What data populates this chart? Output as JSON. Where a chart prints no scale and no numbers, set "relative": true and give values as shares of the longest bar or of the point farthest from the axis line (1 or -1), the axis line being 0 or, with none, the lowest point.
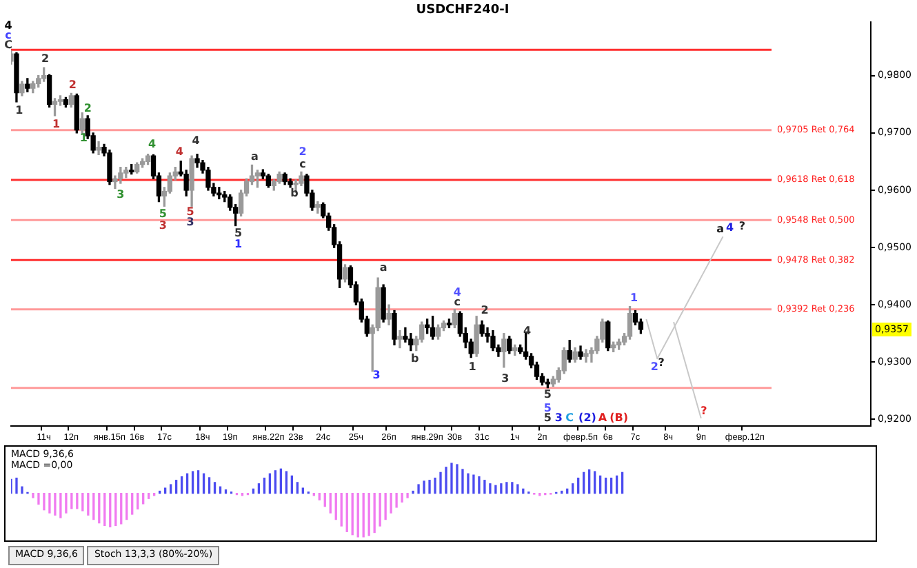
{
  "chart_data": [
    {
      "type": "candlestick",
      "title": "USDCHF240-I",
      "colors": [
        "#9a9a9a",
        "#000000",
        "#9a9a9a",
        "#000000",
        "#9a9a9a",
        "#9a9a9a",
        "#9a9a9a",
        "#000000",
        "#9a9a9a",
        "#9a9a9a",
        "#000000",
        "#9a9a9a",
        "#000000",
        "#9a9a9a",
        "#000000",
        "#000000",
        "#9a9a9a",
        "#000000",
        "#000000",
        "#9a9a9a",
        "#9a9a9a",
        "#9a9a9a",
        "#000000",
        "#9a9a9a",
        "#9a9a9a",
        "#9a9a9a",
        "#000000",
        "#000000",
        "#9a9a9a",
        "#9a9a9a",
        "#9a9a9a",
        "#000000",
        "#000000",
        "#9a9a9a",
        "#000000",
        "#000000",
        "#000000",
        "#000000",
        "#000000",
        "#000000",
        "#000000",
        "#000000",
        "#9a9a9a",
        "#9a9a9a",
        "#9a9a9a",
        "#9a9a9a",
        "#000000",
        "#000000",
        "#9a9a9a",
        "#9a9a9a",
        "#000000",
        "#000000",
        "#9a9a9a",
        "#9a9a9a",
        "#000000",
        "#000000",
        "#9a9a9a",
        "#000000",
        "#000000",
        "#000000",
        "#000000",
        "#9a9a9a",
        "#000000",
        "#000000",
        "#000000",
        "#000000",
        "#9a9a9a",
        "#9a9a9a",
        "#000000",
        "#9a9a9a",
        "#000000",
        "#9a9a9a",
        "#000000",
        "#000000",
        "#9a9a9a",
        "#9a9a9a",
        "#000000",
        "#000000",
        "#9a9a9a",
        "#9a9a9a",
        "#000000",
        "#9a9a9a",
        "#000000",
        "#000000",
        "#000000",
        "#9a9a9a",
        "#000000",
        "#000000",
        "#000000",
        "#000000",
        "#9a9a9a",
        "#000000",
        "#9a9a9a",
        "#000000",
        "#000000",
        "#000000",
        "#000000",
        "#000000",
        "#000000",
        "#9a9a9a",
        "#9a9a9a",
        "#9a9a9a",
        "#000000",
        "#9a9a9a",
        "#000000",
        "#9a9a9a",
        "#9a9a9a",
        "#9a9a9a",
        "#9a9a9a",
        "#000000",
        "#9a9a9a",
        "#9a9a9a",
        "#9a9a9a",
        "#9a9a9a",
        "#000000",
        "#000000",
        null,
        null,
        null,
        null,
        null,
        null,
        null,
        null,
        null,
        null,
        null,
        null,
        null,
        null,
        null,
        null,
        null,
        null,
        null,
        null,
        null,
        null,
        null,
        null,
        null,
        null,
        null,
        null,
        null,
        null,
        null,
        null,
        null,
        null,
        null,
        null,
        null,
        null,
        null,
        null,
        null,
        null
      ],
      "categories": [
        null,
        null,
        null,
        null,
        null,
        null,
        "11ч",
        null,
        null,
        null,
        null,
        "12п",
        null,
        null,
        null,
        null,
        null,
        null,
        "янв.15п",
        null,
        null,
        null,
        null,
        "16в",
        null,
        null,
        null,
        null,
        "17с",
        null,
        null,
        null,
        null,
        null,
        null,
        "18ч",
        null,
        null,
        null,
        null,
        "19п",
        null,
        null,
        null,
        null,
        null,
        null,
        "янв.22п",
        null,
        null,
        null,
        null,
        "23в",
        null,
        null,
        null,
        null,
        "24с",
        null,
        null,
        null,
        null,
        null,
        "25ч",
        null,
        null,
        null,
        null,
        null,
        "26п",
        null,
        null,
        null,
        null,
        null,
        null,
        "янв.29п",
        null,
        null,
        null,
        null,
        "30в",
        null,
        null,
        null,
        null,
        "31с",
        null,
        null,
        null,
        null,
        null,
        "1ч",
        null,
        null,
        null,
        null,
        "2п",
        null,
        null,
        null,
        null,
        null,
        null,
        "февр.5п",
        null,
        null,
        null,
        null,
        "6в",
        null,
        null,
        null,
        null,
        "7с",
        null,
        null,
        null,
        null,
        null,
        "8ч",
        null,
        null,
        null,
        null,
        null,
        "9п",
        null,
        null,
        null,
        null,
        null,
        null,
        null,
        "февр.12п",
        null,
        null,
        null,
        null,
        null,
        null,
        null,
        null,
        null,
        null,
        null,
        null,
        null,
        null,
        null,
        null,
        null,
        null,
        null,
        null,
        null,
        null,
        null
      ],
      "ohlc": [
        [
          0.9825,
          0.9843,
          0.982,
          0.9838
        ],
        [
          0.9838,
          0.984,
          0.9754,
          0.977
        ],
        [
          0.977,
          0.979,
          0.9765,
          0.9785
        ],
        [
          0.9785,
          0.9795,
          0.9772,
          0.9778
        ],
        [
          0.9778,
          0.979,
          0.977,
          0.9786
        ],
        [
          0.9786,
          0.98,
          0.978,
          0.9795
        ],
        [
          0.9795,
          0.9814,
          0.979,
          0.98
        ],
        [
          0.98,
          0.9802,
          0.9745,
          0.975
        ],
        [
          0.975,
          0.976,
          0.973,
          0.9755
        ],
        [
          0.9755,
          0.9765,
          0.9748,
          0.9758
        ],
        [
          0.9758,
          0.9762,
          0.9745,
          0.975
        ],
        [
          0.975,
          0.9769,
          0.9745,
          0.9765
        ],
        [
          0.9765,
          0.9768,
          0.97,
          0.9705
        ],
        [
          0.9705,
          0.9735,
          0.9699,
          0.9725
        ],
        [
          0.9725,
          0.973,
          0.969,
          0.9695
        ],
        [
          0.9695,
          0.97,
          0.9665,
          0.967
        ],
        [
          0.967,
          0.9685,
          0.9662,
          0.9675
        ],
        [
          0.9675,
          0.968,
          0.966,
          0.9665
        ],
        [
          0.9665,
          0.967,
          0.961,
          0.9615
        ],
        [
          0.9615,
          0.9625,
          0.9603,
          0.962
        ],
        [
          0.962,
          0.964,
          0.9612,
          0.963
        ],
        [
          0.963,
          0.964,
          0.9622,
          0.9635
        ],
        [
          0.9635,
          0.9645,
          0.9628,
          0.9632
        ],
        [
          0.9632,
          0.9648,
          0.963,
          0.9645
        ],
        [
          0.9645,
          0.9655,
          0.964,
          0.965
        ],
        [
          0.965,
          0.9663,
          0.9645,
          0.966
        ],
        [
          0.966,
          0.9662,
          0.962,
          0.9625
        ],
        [
          0.9625,
          0.963,
          0.958,
          0.959
        ],
        [
          0.959,
          0.9605,
          0.9572,
          0.9598
        ],
        [
          0.9598,
          0.963,
          0.9595,
          0.9625
        ],
        [
          0.9625,
          0.964,
          0.9618,
          0.9632
        ],
        [
          0.9632,
          0.9651,
          0.9625,
          0.9628
        ],
        [
          0.9628,
          0.9635,
          0.959,
          0.96
        ],
        [
          0.96,
          0.966,
          0.9572,
          0.9655
        ],
        [
          0.9655,
          0.9663,
          0.964,
          0.9648
        ],
        [
          0.9648,
          0.9652,
          0.963,
          0.9635
        ],
        [
          0.9635,
          0.964,
          0.96,
          0.9605
        ],
        [
          0.9605,
          0.9612,
          0.959,
          0.9595
        ],
        [
          0.9595,
          0.9605,
          0.9585,
          0.9592
        ],
        [
          0.9592,
          0.9598,
          0.958,
          0.9588
        ],
        [
          0.9588,
          0.9592,
          0.9565,
          0.957
        ],
        [
          0.957,
          0.9575,
          0.9538,
          0.956
        ],
        [
          0.956,
          0.96,
          0.9555,
          0.9595
        ],
        [
          0.9595,
          0.962,
          0.959,
          0.9615
        ],
        [
          0.9615,
          0.9644,
          0.961,
          0.9625
        ],
        [
          0.9625,
          0.9635,
          0.9605,
          0.963
        ],
        [
          0.963,
          0.9636,
          0.962,
          0.9625
        ],
        [
          0.9625,
          0.9628,
          0.9605,
          0.9608
        ],
        [
          0.9608,
          0.9618,
          0.96,
          0.9615
        ],
        [
          0.9615,
          0.9632,
          0.9612,
          0.9628
        ],
        [
          0.9628,
          0.963,
          0.961,
          0.9615
        ],
        [
          0.9615,
          0.962,
          0.9605,
          0.961
        ],
        [
          0.961,
          0.9618,
          0.9596,
          0.9612
        ],
        [
          0.9612,
          0.9632,
          0.9608,
          0.9625
        ],
        [
          0.9625,
          0.9628,
          0.959,
          0.9595
        ],
        [
          0.9595,
          0.96,
          0.9565,
          0.957
        ],
        [
          0.957,
          0.958,
          0.956,
          0.9575
        ],
        [
          0.9575,
          0.9578,
          0.9552,
          0.9555
        ],
        [
          0.9555,
          0.956,
          0.953,
          0.9535
        ],
        [
          0.9535,
          0.954,
          0.95,
          0.9505
        ],
        [
          0.9505,
          0.951,
          0.943,
          0.9445
        ],
        [
          0.9445,
          0.947,
          0.944,
          0.9465
        ],
        [
          0.9465,
          0.9468,
          0.943,
          0.9435
        ],
        [
          0.9435,
          0.944,
          0.94,
          0.9405
        ],
        [
          0.9405,
          0.941,
          0.937,
          0.9375
        ],
        [
          0.9375,
          0.938,
          0.9345,
          0.935
        ],
        [
          0.935,
          0.9365,
          0.9284,
          0.936
        ],
        [
          0.936,
          0.9447,
          0.9355,
          0.943
        ],
        [
          0.943,
          0.9435,
          0.937,
          0.9375
        ],
        [
          0.9375,
          0.94,
          0.9365,
          0.9385
        ],
        [
          0.9385,
          0.939,
          0.933,
          0.934
        ],
        [
          0.934,
          0.9355,
          0.9325,
          0.9345
        ],
        [
          0.9345,
          0.936,
          0.9335,
          0.934
        ],
        [
          0.934,
          0.935,
          0.932,
          0.933
        ],
        [
          0.933,
          0.9345,
          0.932,
          0.934
        ],
        [
          0.934,
          0.937,
          0.9335,
          0.9365
        ],
        [
          0.9365,
          0.9375,
          0.935,
          0.936
        ],
        [
          0.936,
          0.938,
          0.934,
          0.9345
        ],
        [
          0.9345,
          0.9365,
          0.934,
          0.936
        ],
        [
          0.936,
          0.9372,
          0.9355,
          0.9368
        ],
        [
          0.9368,
          0.9375,
          0.936,
          0.9365
        ],
        [
          0.9365,
          0.9392,
          0.936,
          0.9385
        ],
        [
          0.9385,
          0.9388,
          0.9345,
          0.935
        ],
        [
          0.935,
          0.936,
          0.9325,
          0.9335
        ],
        [
          0.9335,
          0.934,
          0.9308,
          0.9315
        ],
        [
          0.9315,
          0.938,
          0.931,
          0.9365
        ],
        [
          0.9365,
          0.9372,
          0.9345,
          0.935
        ],
        [
          0.935,
          0.936,
          0.9335,
          0.9345
        ],
        [
          0.9345,
          0.9355,
          0.932,
          0.9325
        ],
        [
          0.9325,
          0.933,
          0.931,
          0.9318
        ],
        [
          0.9318,
          0.935,
          0.9291,
          0.934
        ],
        [
          0.934,
          0.9345,
          0.9315,
          0.932
        ],
        [
          0.932,
          0.933,
          0.9312,
          0.9325
        ],
        [
          0.9325,
          0.933,
          0.9315,
          0.9318
        ],
        [
          0.9318,
          0.9351,
          0.9305,
          0.931
        ],
        [
          0.931,
          0.9315,
          0.929,
          0.9295
        ],
        [
          0.9295,
          0.93,
          0.927,
          0.9275
        ],
        [
          0.9275,
          0.928,
          0.926,
          0.9265
        ],
        [
          0.9265,
          0.927,
          0.9255,
          0.9262
        ],
        [
          0.9262,
          0.9275,
          0.9258,
          0.927
        ],
        [
          0.927,
          0.929,
          0.9265,
          0.9285
        ],
        [
          0.9285,
          0.9325,
          0.928,
          0.932
        ],
        [
          0.932,
          0.9338,
          0.93,
          0.9305
        ],
        [
          0.9305,
          0.9325,
          0.93,
          0.9318
        ],
        [
          0.9318,
          0.9328,
          0.9305,
          0.931
        ],
        [
          0.931,
          0.9322,
          0.93,
          0.9315
        ],
        [
          0.9315,
          0.9325,
          0.93,
          0.932
        ],
        [
          0.932,
          0.9345,
          0.9315,
          0.934
        ],
        [
          0.934,
          0.9375,
          0.9335,
          0.937
        ],
        [
          0.937,
          0.9372,
          0.932,
          0.9325
        ],
        [
          0.9325,
          0.9335,
          0.9318,
          0.933
        ],
        [
          0.933,
          0.934,
          0.9322,
          0.9335
        ],
        [
          0.9335,
          0.935,
          0.933,
          0.9345
        ],
        [
          0.9345,
          0.9397,
          0.934,
          0.9385
        ],
        [
          0.9385,
          0.939,
          0.9365,
          0.937
        ],
        [
          0.937,
          0.9375,
          0.935,
          0.9357
        ],
        null,
        null,
        null,
        null,
        null,
        null,
        null,
        null,
        null,
        null,
        null,
        null,
        null,
        null,
        null,
        null,
        null,
        null,
        null,
        null,
        null,
        null,
        null,
        null,
        null,
        null,
        null,
        null,
        null,
        null,
        null,
        null,
        null,
        null,
        null,
        null,
        null,
        null,
        null,
        null,
        null,
        null
      ],
      "series": [
        {
          "type": "line",
          "color": "#c8c8c8",
          "values": [
            null,
            null,
            null,
            null,
            null,
            null,
            null,
            null,
            null,
            null,
            null,
            null,
            null,
            null,
            null,
            null,
            null,
            null,
            null,
            null,
            null,
            null,
            null,
            null,
            null,
            null,
            null,
            null,
            null,
            null,
            null,
            null,
            null,
            null,
            null,
            null,
            null,
            null,
            null,
            null,
            null,
            null,
            null,
            null,
            null,
            null,
            null,
            null,
            null,
            null,
            null,
            null,
            null,
            null,
            null,
            null,
            null,
            null,
            null,
            null,
            null,
            null,
            null,
            null,
            null,
            null,
            null,
            null,
            null,
            null,
            null,
            null,
            null,
            null,
            null,
            null,
            null,
            null,
            null,
            null,
            null,
            null,
            null,
            null,
            null,
            null,
            null,
            null,
            null,
            null,
            null,
            null,
            null,
            null,
            null,
            null,
            null,
            null,
            null,
            null,
            null,
            null,
            null,
            null,
            null,
            null,
            null,
            null,
            null,
            null,
            null,
            null,
            null,
            null,
            null,
            null,
            0.9375,
            null,
            0.9306,
            null,
            null,
            null,
            null,
            null,
            null,
            null,
            null,
            null,
            null,
            null,
            0.9519,
            null,
            null,
            null,
            null,
            null,
            null,
            null,
            null,
            null,
            null,
            null,
            null,
            null,
            null,
            null,
            null,
            null,
            null,
            null,
            null,
            null,
            null,
            null,
            null,
            null,
            null,
            null
          ]
        },
        {
          "type": "line",
          "color": "#c8c8c8",
          "values": [
            null,
            null,
            null,
            null,
            null,
            null,
            null,
            null,
            null,
            null,
            null,
            null,
            null,
            null,
            null,
            null,
            null,
            null,
            null,
            null,
            null,
            null,
            null,
            null,
            null,
            null,
            null,
            null,
            null,
            null,
            null,
            null,
            null,
            null,
            null,
            null,
            null,
            null,
            null,
            null,
            null,
            null,
            null,
            null,
            null,
            null,
            null,
            null,
            null,
            null,
            null,
            null,
            null,
            null,
            null,
            null,
            null,
            null,
            null,
            null,
            null,
            null,
            null,
            null,
            null,
            null,
            null,
            null,
            null,
            null,
            null,
            null,
            null,
            null,
            null,
            null,
            null,
            null,
            null,
            null,
            null,
            null,
            null,
            null,
            null,
            null,
            null,
            null,
            null,
            null,
            null,
            null,
            null,
            null,
            null,
            null,
            null,
            null,
            null,
            null,
            null,
            null,
            null,
            null,
            null,
            null,
            null,
            null,
            null,
            null,
            null,
            null,
            null,
            null,
            null,
            null,
            null,
            null,
            null,
            null,
            null,
            0.937,
            null,
            null,
            null,
            null,
            0.9202,
            null,
            null,
            null,
            null,
            null,
            null,
            null,
            null,
            null,
            null,
            null,
            null,
            null,
            null,
            null,
            null,
            null,
            null,
            null,
            null,
            null,
            null,
            null,
            null,
            null,
            null,
            null,
            null,
            null,
            null,
            null
          ]
        }
      ],
      "marker": "none",
      "ylim": [
        0.9188,
        0.9894
      ],
      "yticks": [
        {
          "value": 0.92,
          "label": "0,9200"
        },
        {
          "value": 0.93,
          "label": "0,9300"
        },
        {
          "value": 0.94,
          "label": "0,9400"
        },
        {
          "value": 0.95,
          "label": "0,9500"
        },
        {
          "value": 0.96,
          "label": "0,9600"
        },
        {
          "value": 0.97,
          "label": "0,9700"
        },
        {
          "value": 0.98,
          "label": "0,9800"
        }
      ],
      "ref_lines": [
        {
          "axis": "y",
          "value": 0.9845,
          "color": "#ff3030"
        },
        {
          "axis": "y",
          "value": 0.9705,
          "label": "0,9705 Ret 0,764",
          "color": "#ff9a9a"
        },
        {
          "axis": "y",
          "value": 0.9618,
          "label": "0,9618 Ret 0,618",
          "color": "#ff3030"
        },
        {
          "axis": "y",
          "value": 0.9548,
          "label": "0,9548 Ret 0,500",
          "color": "#ff9a9a"
        },
        {
          "axis": "y",
          "value": 0.9478,
          "label": "0,9478 Ret 0,382",
          "color": "#ff3030"
        },
        {
          "axis": "y",
          "value": 0.9392,
          "label": "0,9392 Ret 0,236",
          "color": "#ff9a9a"
        },
        {
          "axis": "y",
          "value": 0.9255,
          "color": "#ff9a9a"
        }
      ],
      "annotations": [
        "4",
        "c",
        "C",
        "1",
        "2",
        "1",
        "2",
        "2",
        "1",
        "3",
        "4",
        "5",
        "3",
        "4",
        "5",
        "3",
        "4",
        "5",
        "1",
        "a",
        "2",
        "c",
        "b",
        "3",
        "a",
        "b",
        "4",
        "c",
        "2",
        "1",
        "3",
        "4",
        "5",
        "5",
        "5",
        "3",
        "C",
        "(2)",
        "A",
        "(B)",
        "1",
        "2",
        "?",
        "a",
        "4",
        "?",
        "?",
        "0,9357"
      ],
      "grid": false,
      "legend": false
    },
    {
      "type": "bar",
      "title": "MACD 9,36,6",
      "relative": true,
      "categories": [
        null,
        null,
        null,
        null,
        null,
        null,
        null,
        null,
        null,
        null,
        null,
        null,
        null,
        null,
        null,
        null,
        null,
        null,
        null,
        null,
        null,
        null,
        null,
        null,
        null,
        null,
        null,
        null,
        null,
        null,
        null,
        null,
        null,
        null,
        null,
        null,
        null,
        null,
        null,
        null,
        null,
        null,
        null,
        null,
        null,
        null,
        null,
        null,
        null,
        null,
        null,
        null,
        null,
        null,
        null,
        null,
        null,
        null,
        null,
        null,
        null,
        null,
        null,
        null,
        null,
        null,
        null,
        null,
        null,
        null,
        null,
        null,
        null,
        null,
        null,
        null,
        null,
        null,
        null,
        null,
        null,
        null,
        null,
        null,
        null,
        null,
        null,
        null,
        null,
        null,
        null,
        null,
        null,
        null,
        null,
        null,
        null,
        null,
        null,
        null,
        null,
        null,
        null,
        null,
        null,
        null,
        null,
        null,
        null,
        null,
        null,
        null,
        null,
        null,
        null,
        null,
        null,
        null,
        null,
        null,
        null,
        null,
        null,
        null,
        null,
        null,
        null,
        null,
        null,
        null,
        null,
        null,
        null,
        null,
        null,
        null,
        null,
        null,
        null,
        null,
        null,
        null,
        null,
        null,
        null,
        null,
        null,
        null,
        null,
        null,
        null,
        null,
        null,
        null,
        null,
        null,
        null,
        null
      ],
      "values": [
        0.32,
        0.35,
        0.15,
        0.02,
        -0.1,
        -0.25,
        -0.38,
        -0.45,
        -0.5,
        -0.56,
        -0.45,
        -0.35,
        -0.35,
        -0.4,
        -0.5,
        -0.6,
        -0.68,
        -0.74,
        -0.77,
        -0.74,
        -0.7,
        -0.6,
        -0.48,
        -0.36,
        -0.24,
        -0.12,
        -0.05,
        0.05,
        0.12,
        0.2,
        0.3,
        0.38,
        0.45,
        0.5,
        0.52,
        0.45,
        0.36,
        0.25,
        0.15,
        0.08,
        0.03,
        -0.03,
        -0.05,
        -0.03,
        0.1,
        0.22,
        0.35,
        0.45,
        0.52,
        0.56,
        0.5,
        0.4,
        0.25,
        0.12,
        0.03,
        -0.05,
        -0.15,
        -0.3,
        -0.45,
        -0.6,
        -0.75,
        -0.88,
        -0.95,
        -1,
        -1,
        -0.97,
        -0.9,
        -0.75,
        -0.6,
        -0.45,
        -0.32,
        -0.2,
        -0.1,
        0.05,
        0.2,
        0.28,
        0.3,
        0.35,
        0.48,
        0.6,
        0.69,
        0.66,
        0.55,
        0.45,
        0.42,
        0.38,
        0.3,
        0.22,
        0.18,
        0.22,
        0.25,
        0.25,
        0.2,
        0.1,
        0.03,
        -0.02,
        -0.05,
        -0.03,
        -0.02,
        0.02,
        0.05,
        0.1,
        0.22,
        0.35,
        0.48,
        0.54,
        0.5,
        0.4,
        0.35,
        0.35,
        0.4,
        0.48,
        null,
        null,
        null,
        null,
        null,
        null,
        null,
        null,
        null,
        null,
        null,
        null,
        null,
        null,
        null,
        null,
        null,
        null,
        null,
        null,
        null,
        null,
        null,
        null,
        null,
        null,
        null,
        null,
        null,
        null,
        null,
        null,
        null,
        null,
        null,
        null,
        null,
        null,
        null,
        null,
        null,
        null,
        null,
        null,
        null,
        null
      ],
      "colors": [
        "#4b4bf0",
        "#4b4bf0",
        "#4b4bf0",
        "#4b4bf0",
        "#f07af0",
        "#f07af0",
        "#f07af0",
        "#f07af0",
        "#f07af0",
        "#f07af0",
        "#f07af0",
        "#f07af0",
        "#f07af0",
        "#f07af0",
        "#f07af0",
        "#f07af0",
        "#f07af0",
        "#f07af0",
        "#f07af0",
        "#f07af0",
        "#f07af0",
        "#f07af0",
        "#f07af0",
        "#f07af0",
        "#f07af0",
        "#f07af0",
        "#f07af0",
        "#4b4bf0",
        "#4b4bf0",
        "#4b4bf0",
        "#4b4bf0",
        "#4b4bf0",
        "#4b4bf0",
        "#4b4bf0",
        "#4b4bf0",
        "#4b4bf0",
        "#4b4bf0",
        "#4b4bf0",
        "#4b4bf0",
        "#4b4bf0",
        "#4b4bf0",
        "#f07af0",
        "#f07af0",
        "#f07af0",
        "#4b4bf0",
        "#4b4bf0",
        "#4b4bf0",
        "#4b4bf0",
        "#4b4bf0",
        "#4b4bf0",
        "#4b4bf0",
        "#4b4bf0",
        "#4b4bf0",
        "#4b4bf0",
        "#4b4bf0",
        "#f07af0",
        "#f07af0",
        "#f07af0",
        "#f07af0",
        "#f07af0",
        "#f07af0",
        "#f07af0",
        "#f07af0",
        "#f07af0",
        "#f07af0",
        "#f07af0",
        "#f07af0",
        "#f07af0",
        "#f07af0",
        "#f07af0",
        "#f07af0",
        "#f07af0",
        "#f07af0",
        "#4b4bf0",
        "#4b4bf0",
        "#4b4bf0",
        "#4b4bf0",
        "#4b4bf0",
        "#4b4bf0",
        "#4b4bf0",
        "#4b4bf0",
        "#4b4bf0",
        "#4b4bf0",
        "#4b4bf0",
        "#4b4bf0",
        "#4b4bf0",
        "#4b4bf0",
        "#4b4bf0",
        "#4b4bf0",
        "#4b4bf0",
        "#4b4bf0",
        "#4b4bf0",
        "#4b4bf0",
        "#4b4bf0",
        "#4b4bf0",
        "#f07af0",
        "#f07af0",
        "#f07af0",
        "#f07af0",
        "#4b4bf0",
        "#4b4bf0",
        "#4b4bf0",
        "#4b4bf0",
        "#4b4bf0",
        "#4b4bf0",
        "#4b4bf0",
        "#4b4bf0",
        "#4b4bf0",
        "#4b4bf0",
        "#4b4bf0",
        "#4b4bf0",
        "#4b4bf0",
        null,
        null,
        null,
        null,
        null,
        null,
        null,
        null,
        null,
        null,
        null,
        null,
        null,
        null,
        null,
        null,
        null,
        null,
        null,
        null,
        null,
        null,
        null,
        null,
        null,
        null,
        null,
        null,
        null,
        null,
        null,
        null,
        null,
        null,
        null,
        null,
        null,
        null,
        null,
        null,
        null,
        null,
        null,
        null,
        null,
        null
      ],
      "annotations": [
        "MACD =0,00",
        "MACD 9,36,6",
        "Stoch 13,3,3 (80%-20%)"
      ],
      "legend": false
    }
  ]
}
